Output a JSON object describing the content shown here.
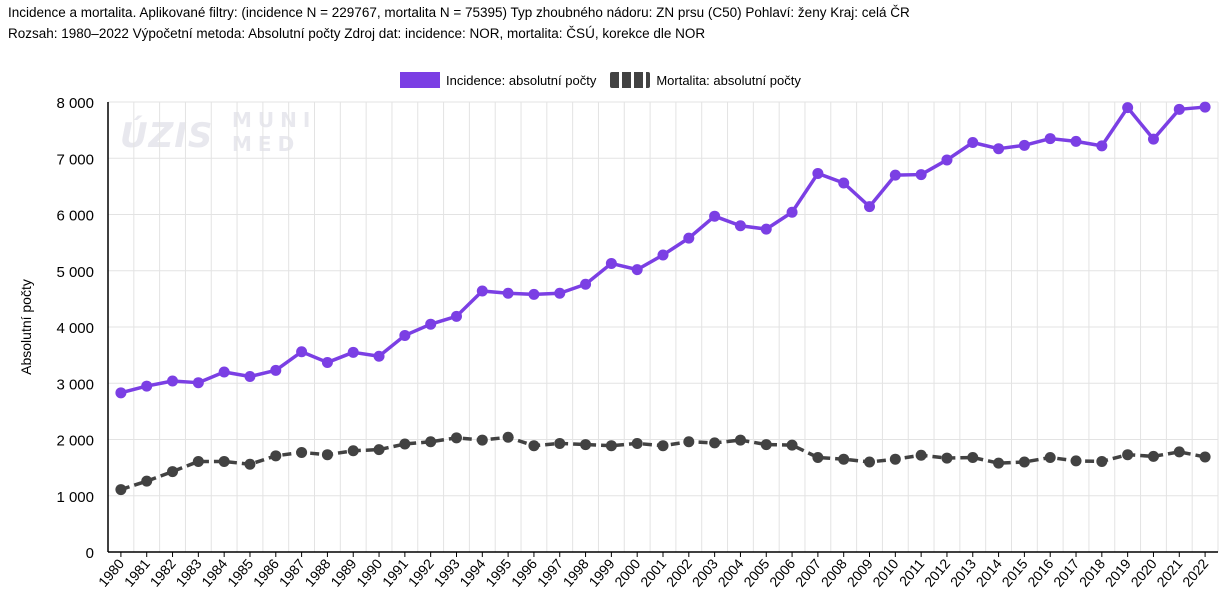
{
  "header": {
    "line1": "Incidence a mortalita. Aplikované filtry: (incidence N = 229767, mortalita N = 75395) Typ zhoubného nádoru: ZN prsu (C50) Pohlaví: ženy Kraj: celá ČR",
    "line2": "Rozsah: 1980–2022 Výpočetní metoda: Absolutní počty Zdroj dat: incidence: NOR, mortalita: ČSÚ, korekce dle NOR"
  },
  "watermark": {
    "left": "ÚZIS",
    "right_line1": "MUNI",
    "right_line2": "MED"
  },
  "legend": {
    "incidence": "Incidence: absolutní počty",
    "mortality": "Mortalita: absolutní počty"
  },
  "colors": {
    "incidence": "#7b3fe4",
    "mortality": "#424242",
    "grid": "#e3e3e3"
  },
  "chart_data": {
    "type": "line",
    "ylabel": "Absolutní počty",
    "ylim": [
      0,
      8000
    ],
    "yticks": [
      "0",
      "1 000",
      "2 000",
      "3 000",
      "4 000",
      "5 000",
      "6 000",
      "7 000",
      "8 000"
    ],
    "grid": true,
    "legend_position": "top",
    "x": [
      "1980",
      "1981",
      "1982",
      "1983",
      "1984",
      "1985",
      "1986",
      "1987",
      "1988",
      "1989",
      "1990",
      "1991",
      "1992",
      "1993",
      "1994",
      "1995",
      "1996",
      "1997",
      "1998",
      "1999",
      "2000",
      "2001",
      "2002",
      "2003",
      "2004",
      "2005",
      "2006",
      "2007",
      "2008",
      "2009",
      "2010",
      "2011",
      "2012",
      "2013",
      "2014",
      "2015",
      "2016",
      "2017",
      "2018",
      "2019",
      "2020",
      "2021",
      "2022"
    ],
    "series": [
      {
        "name": "Incidence: absolutní počty",
        "style": "solid",
        "values": [
          2830,
          2950,
          3040,
          3010,
          3200,
          3120,
          3230,
          3560,
          3370,
          3550,
          3480,
          3850,
          4050,
          4190,
          4640,
          4600,
          4580,
          4600,
          4760,
          5130,
          5020,
          5280,
          5580,
          5970,
          5800,
          5740,
          6040,
          6730,
          6560,
          6140,
          6700,
          6710,
          6970,
          7280,
          7170,
          7230,
          7350,
          7300,
          7220,
          7900,
          7340,
          7870,
          7910
        ]
      },
      {
        "name": "Mortalita: absolutní počty",
        "style": "dashed",
        "values": [
          1110,
          1260,
          1430,
          1610,
          1610,
          1560,
          1710,
          1770,
          1730,
          1800,
          1820,
          1920,
          1960,
          2030,
          1990,
          2040,
          1890,
          1930,
          1910,
          1890,
          1930,
          1890,
          1960,
          1940,
          1990,
          1910,
          1900,
          1680,
          1650,
          1600,
          1650,
          1720,
          1670,
          1680,
          1580,
          1600,
          1680,
          1620,
          1610,
          1730,
          1700,
          1780,
          1690
        ]
      }
    ]
  }
}
